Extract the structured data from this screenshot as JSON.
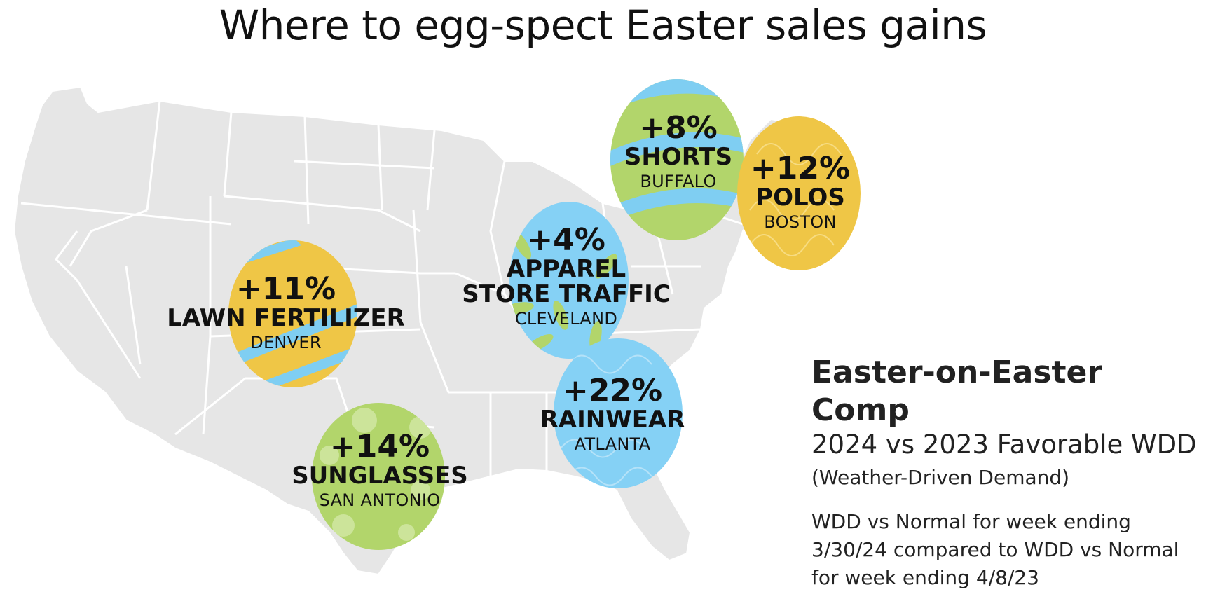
{
  "title": "Where to egg-spect Easter sales gains",
  "colors": {
    "map_fill": "#e6e6e6",
    "map_border": "#ffffff",
    "egg_yellow": "#efc646",
    "egg_green": "#b2d56b",
    "egg_blue": "#85d1f5",
    "stripe_blue": "#7fcef2",
    "stripe_green": "#a8d565",
    "text": "#111111"
  },
  "eggs": [
    {
      "id": "shorts",
      "pct": "+8%",
      "category": "SHORTS",
      "city": "BUFFALO",
      "color": "green",
      "pattern": "stripes-blue",
      "icon": "easter-egg-icon"
    },
    {
      "id": "polos",
      "pct": "+12%",
      "category": "POLOS",
      "city": "BOSTON",
      "color": "yellow",
      "pattern": "swirls",
      "icon": "easter-egg-icon"
    },
    {
      "id": "apparel",
      "pct": "+4%",
      "category": "APPAREL STORE TRAFFIC",
      "category_line1": "APPAREL",
      "category_line2": "STORE TRAFFIC",
      "city": "CLEVELAND",
      "color": "blue",
      "pattern": "flowers-green",
      "icon": "easter-egg-icon"
    },
    {
      "id": "lawn",
      "pct": "+11%",
      "category": "LAWN FERTILIZER",
      "city": "DENVER",
      "color": "yellow",
      "pattern": "stripes-blue",
      "icon": "easter-egg-icon"
    },
    {
      "id": "sunglasses",
      "pct": "+14%",
      "category": "SUNGLASSES",
      "city": "SAN ANTONIO",
      "color": "green",
      "pattern": "flowers-light",
      "icon": "easter-egg-icon"
    },
    {
      "id": "rainwear",
      "pct": "+22%",
      "category": "RAINWEAR",
      "city": "ATLANTA",
      "color": "blue",
      "pattern": "swirls",
      "icon": "easter-egg-icon"
    }
  ],
  "legend": {
    "heading": "Easter-on-Easter Comp",
    "subheading": "2024 vs 2023 Favorable WDD",
    "subheading2": "(Weather-Driven Demand)",
    "note_line1": "WDD vs Normal for week ending",
    "note_line2": "3/30/24 compared to WDD vs Normal",
    "note_line3": "for week ending 4/8/23"
  }
}
